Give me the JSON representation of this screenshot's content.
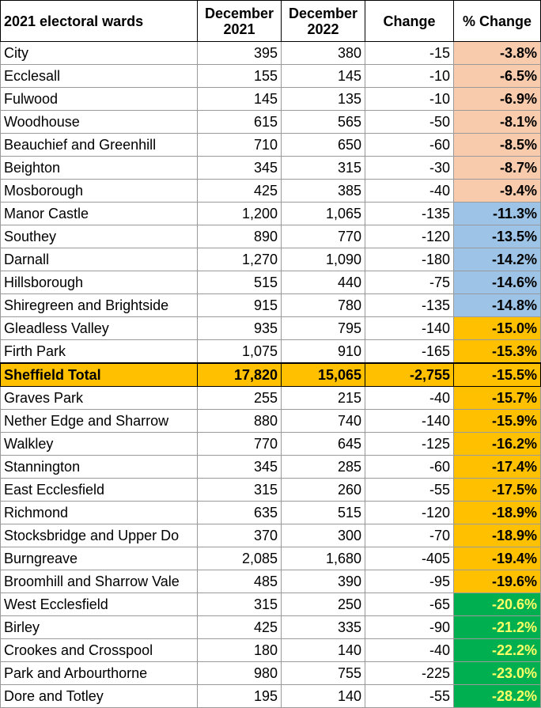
{
  "table": {
    "headers": {
      "ward": "2021 electoral wards",
      "dec2021": [
        "December",
        "2021"
      ],
      "dec2022": [
        "December",
        "2022"
      ],
      "change": "Change",
      "pct_change": "% Change"
    },
    "colors": {
      "peach": "#f8cbad",
      "blue": "#9dc3e6",
      "orange": "#ffc000",
      "green": "#00b050",
      "green_text": "#ffff66",
      "total_row": "#ffc000"
    },
    "rows": [
      {
        "ward": "City",
        "dec2021": "395",
        "dec2022": "380",
        "change": "-15",
        "pct": "-3.8%",
        "band": "peach"
      },
      {
        "ward": "Ecclesall",
        "dec2021": "155",
        "dec2022": "145",
        "change": "-10",
        "pct": "-6.5%",
        "band": "peach"
      },
      {
        "ward": "Fulwood",
        "dec2021": "145",
        "dec2022": "135",
        "change": "-10",
        "pct": "-6.9%",
        "band": "peach"
      },
      {
        "ward": "Woodhouse",
        "dec2021": "615",
        "dec2022": "565",
        "change": "-50",
        "pct": "-8.1%",
        "band": "peach"
      },
      {
        "ward": "Beauchief and Greenhill",
        "dec2021": "710",
        "dec2022": "650",
        "change": "-60",
        "pct": "-8.5%",
        "band": "peach"
      },
      {
        "ward": "Beighton",
        "dec2021": "345",
        "dec2022": "315",
        "change": "-30",
        "pct": "-8.7%",
        "band": "peach"
      },
      {
        "ward": "Mosborough",
        "dec2021": "425",
        "dec2022": "385",
        "change": "-40",
        "pct": "-9.4%",
        "band": "peach"
      },
      {
        "ward": "Manor Castle",
        "dec2021": "1,200",
        "dec2022": "1,065",
        "change": "-135",
        "pct": "-11.3%",
        "band": "blue"
      },
      {
        "ward": "Southey",
        "dec2021": "890",
        "dec2022": "770",
        "change": "-120",
        "pct": "-13.5%",
        "band": "blue"
      },
      {
        "ward": "Darnall",
        "dec2021": "1,270",
        "dec2022": "1,090",
        "change": "-180",
        "pct": "-14.2%",
        "band": "blue"
      },
      {
        "ward": "Hillsborough",
        "dec2021": "515",
        "dec2022": "440",
        "change": "-75",
        "pct": "-14.6%",
        "band": "blue"
      },
      {
        "ward": "Shiregreen and Brightside",
        "dec2021": "915",
        "dec2022": "780",
        "change": "-135",
        "pct": "-14.8%",
        "band": "blue"
      },
      {
        "ward": "Gleadless Valley",
        "dec2021": "935",
        "dec2022": "795",
        "change": "-140",
        "pct": "-15.0%",
        "band": "orange"
      },
      {
        "ward": "Firth Park",
        "dec2021": "1,075",
        "dec2022": "910",
        "change": "-165",
        "pct": "-15.3%",
        "band": "orange"
      },
      {
        "ward": "Sheffield Total",
        "dec2021": "17,820",
        "dec2022": "15,065",
        "change": "-2,755",
        "pct": "-15.5%",
        "band": "orange",
        "total": true
      },
      {
        "ward": "Graves Park",
        "dec2021": "255",
        "dec2022": "215",
        "change": "-40",
        "pct": "-15.7%",
        "band": "orange"
      },
      {
        "ward": "Nether Edge and Sharrow",
        "dec2021": "880",
        "dec2022": "740",
        "change": "-140",
        "pct": "-15.9%",
        "band": "orange"
      },
      {
        "ward": "Walkley",
        "dec2021": "770",
        "dec2022": "645",
        "change": "-125",
        "pct": "-16.2%",
        "band": "orange"
      },
      {
        "ward": "Stannington",
        "dec2021": "345",
        "dec2022": "285",
        "change": "-60",
        "pct": "-17.4%",
        "band": "orange"
      },
      {
        "ward": "East Ecclesfield",
        "dec2021": "315",
        "dec2022": "260",
        "change": "-55",
        "pct": "-17.5%",
        "band": "orange"
      },
      {
        "ward": "Richmond",
        "dec2021": "635",
        "dec2022": "515",
        "change": "-120",
        "pct": "-18.9%",
        "band": "orange"
      },
      {
        "ward": "Stocksbridge and Upper Do",
        "dec2021": "370",
        "dec2022": "300",
        "change": "-70",
        "pct": "-18.9%",
        "band": "orange"
      },
      {
        "ward": "Burngreave",
        "dec2021": "2,085",
        "dec2022": "1,680",
        "change": "-405",
        "pct": "-19.4%",
        "band": "orange"
      },
      {
        "ward": "Broomhill and Sharrow Vale",
        "dec2021": "485",
        "dec2022": "390",
        "change": "-95",
        "pct": "-19.6%",
        "band": "orange"
      },
      {
        "ward": "West Ecclesfield",
        "dec2021": "315",
        "dec2022": "250",
        "change": "-65",
        "pct": "-20.6%",
        "band": "green"
      },
      {
        "ward": "Birley",
        "dec2021": "425",
        "dec2022": "335",
        "change": "-90",
        "pct": "-21.2%",
        "band": "green"
      },
      {
        "ward": "Crookes and Crosspool",
        "dec2021": "180",
        "dec2022": "140",
        "change": "-40",
        "pct": "-22.2%",
        "band": "green"
      },
      {
        "ward": "Park and Arbourthorne",
        "dec2021": "980",
        "dec2022": "755",
        "change": "-225",
        "pct": "-23.0%",
        "band": "green"
      },
      {
        "ward": "Dore and Totley",
        "dec2021": "195",
        "dec2022": "140",
        "change": "-55",
        "pct": "-28.2%",
        "band": "green"
      }
    ]
  }
}
